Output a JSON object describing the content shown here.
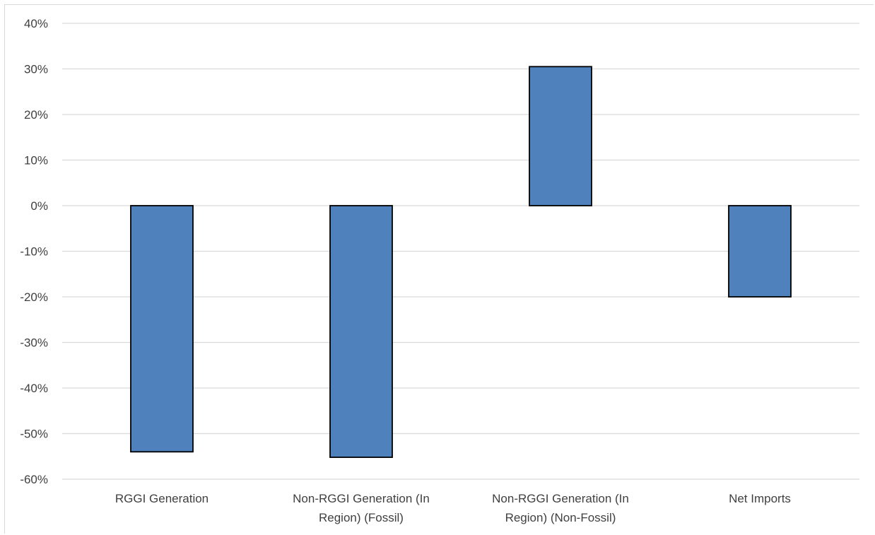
{
  "chart_data": {
    "type": "bar",
    "title": "",
    "xlabel": "",
    "ylabel": "",
    "categories": [
      [
        "RGGI Generation"
      ],
      [
        "Non-RGGI Generation (In",
        "Region) (Fossil)"
      ],
      [
        "Non-RGGI Generation (In",
        "Region) (Non-Fossil)"
      ],
      [
        "Net Imports"
      ]
    ],
    "values": [
      -54,
      -55.2,
      30.5,
      -20
    ],
    "ylim": [
      -60,
      40
    ],
    "yticks": [
      40,
      30,
      20,
      10,
      0,
      -10,
      -20,
      -30,
      -40,
      -50,
      -60
    ],
    "ytick_suffix": "%",
    "grid": true,
    "legend": "none",
    "bar_color": "#4f81bd",
    "bar_outline_color": "#000000",
    "grid_color": "#d9d9d9"
  }
}
